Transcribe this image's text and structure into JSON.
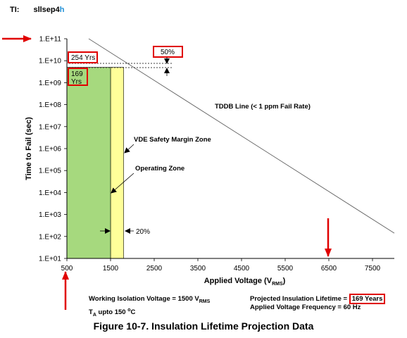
{
  "header": {
    "ti_label": "TI:",
    "code_main": "sllsep4",
    "code_tail": "h"
  },
  "caption": "Figure 10-7. Insulation Lifetime Projection Data",
  "notes": {
    "working_voltage": "Working Isolation Voltage = 1500 V",
    "working_voltage_sub": "RMS",
    "temperature_t": "T",
    "temperature_sub": "A",
    "temperature_rest": " upto 150 ",
    "temperature_deg": "o",
    "temperature_unit": "C",
    "projected_lifetime": "Projected Insulation Lifetime = ",
    "projected_lifetime_value": "169 Years",
    "frequency": "Applied Voltage Frequency = 60 Hz"
  },
  "colors": {
    "green_zone": "#a6d97e",
    "yellow_zone": "#ffff99",
    "highlight": "#e00000",
    "arrow": "#e00000"
  },
  "chart_data": {
    "type": "line",
    "xlabel": "Applied Voltage (V",
    "xlabel_sub": "RMS",
    "xlabel_end": ")",
    "ylabel": "Time to Fail (sec)",
    "xlim": [
      500,
      8000
    ],
    "ylim_exp": [
      1,
      11
    ],
    "x_ticks": [
      500,
      1500,
      2500,
      3500,
      4500,
      5500,
      6500,
      7500
    ],
    "x_tick_labels": [
      "500",
      "1500",
      "2500",
      "3500",
      "4500",
      "5500",
      "6500",
      "7500"
    ],
    "y_tick_labels": [
      "1.E+01",
      "1.E+02",
      "1.E+03",
      "1.E+04",
      "1.E+05",
      "1.E+06",
      "1.E+07",
      "1.E+08",
      "1.E+09",
      "1.E+10",
      "1.E+11"
    ],
    "tddb_line": {
      "label": "TDDB Line (< 1 ppm Fail Rate)",
      "points": [
        [
          1000,
          11
        ],
        [
          8000,
          2.15
        ]
      ]
    },
    "operating_zone": {
      "label": "Operating  Zone",
      "x": [
        500,
        1500
      ],
      "y_top_exp": 9.7
    },
    "safety_zone": {
      "label": "VDE Safety Margin Zone",
      "x": [
        1500,
        1800
      ]
    },
    "annotations": {
      "lifetime_254": "254 Yrs",
      "lifetime_169": "169 Yrs",
      "margin_50": "50%",
      "margin_20": "20%"
    }
  }
}
